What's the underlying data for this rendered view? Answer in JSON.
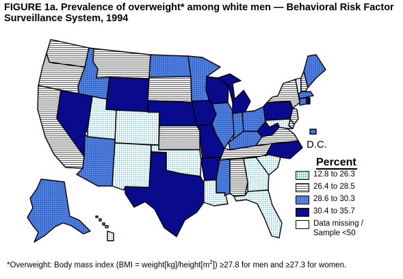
{
  "title": "FIGURE 1a. Prevalence of overweight* among white men — Behavioral Risk Factor Surveillance System, 1994",
  "map": {
    "dc_label": "D.C.",
    "colors": {
      "dots": "#9fe7f0",
      "hstripes": "#d8d8d8",
      "blue": "#3e6fd4",
      "navy": "#0a0a8c",
      "white": "#ffffff"
    },
    "states": [
      {
        "id": "WA",
        "cat": "hstripes"
      },
      {
        "id": "OR",
        "cat": "hstripes"
      },
      {
        "id": "CA",
        "cat": "hstripes"
      },
      {
        "id": "ID",
        "cat": "blue"
      },
      {
        "id": "NV",
        "cat": "navy"
      },
      {
        "id": "MT",
        "cat": "hstripes"
      },
      {
        "id": "WY",
        "cat": "navy"
      },
      {
        "id": "UT",
        "cat": "dots"
      },
      {
        "id": "AZ",
        "cat": "blue"
      },
      {
        "id": "CO",
        "cat": "dots"
      },
      {
        "id": "NM",
        "cat": "dots"
      },
      {
        "id": "ND",
        "cat": "blue"
      },
      {
        "id": "SD",
        "cat": "hstripes"
      },
      {
        "id": "NE",
        "cat": "navy"
      },
      {
        "id": "KS",
        "cat": "hstripes"
      },
      {
        "id": "OK",
        "cat": "dots"
      },
      {
        "id": "TX",
        "cat": "navy"
      },
      {
        "id": "MN",
        "cat": "blue"
      },
      {
        "id": "IA",
        "cat": "navy"
      },
      {
        "id": "MO",
        "cat": "navy"
      },
      {
        "id": "AR",
        "cat": "navy"
      },
      {
        "id": "LA",
        "cat": "dots"
      },
      {
        "id": "WI",
        "cat": "navy"
      },
      {
        "id": "IL",
        "cat": "blue"
      },
      {
        "id": "MI",
        "cat": "navy"
      },
      {
        "id": "IN",
        "cat": "blue"
      },
      {
        "id": "OH",
        "cat": "blue"
      },
      {
        "id": "KY",
        "cat": "blue"
      },
      {
        "id": "TN",
        "cat": "hstripes"
      },
      {
        "id": "MS",
        "cat": "blue"
      },
      {
        "id": "AL",
        "cat": "hstripes"
      },
      {
        "id": "GA",
        "cat": "dots"
      },
      {
        "id": "FL",
        "cat": "dots"
      },
      {
        "id": "SC",
        "cat": "dots"
      },
      {
        "id": "NC",
        "cat": "navy"
      },
      {
        "id": "VA",
        "cat": "hstripes"
      },
      {
        "id": "WV",
        "cat": "navy"
      },
      {
        "id": "PA",
        "cat": "navy"
      },
      {
        "id": "NY",
        "cat": "hstripes"
      },
      {
        "id": "ME",
        "cat": "blue"
      },
      {
        "id": "VT",
        "cat": "dots"
      },
      {
        "id": "NH",
        "cat": "hstripes"
      },
      {
        "id": "MA",
        "cat": "blue"
      },
      {
        "id": "CT",
        "cat": "blue"
      },
      {
        "id": "RI",
        "cat": "navy"
      },
      {
        "id": "NJ",
        "cat": "hstripes"
      },
      {
        "id": "DE",
        "cat": "hstripes"
      },
      {
        "id": "MD",
        "cat": "dots"
      },
      {
        "id": "DC",
        "cat": "blue"
      },
      {
        "id": "AK",
        "cat": "blue"
      },
      {
        "id": "HI",
        "cat": "dots"
      }
    ]
  },
  "legend": {
    "title": "Percent",
    "items": [
      {
        "label": "12.8 to 26.3",
        "cat": "dots"
      },
      {
        "label": "26.4 to 28.5",
        "cat": "hstripes"
      },
      {
        "label": "28.6 to 30.3",
        "cat": "blue"
      },
      {
        "label": "30.4 to 35.7",
        "cat": "navy"
      },
      {
        "label_line1": "Data missing /",
        "label_line2": "Sample <50",
        "cat": "white"
      }
    ]
  },
  "footnote": {
    "lead": "*Overweight: Body mass index (BMI = weight[kg]/height[m",
    "sup": "2",
    "tail": "]) ≥27.8 for men and ≥27.3 for women."
  }
}
